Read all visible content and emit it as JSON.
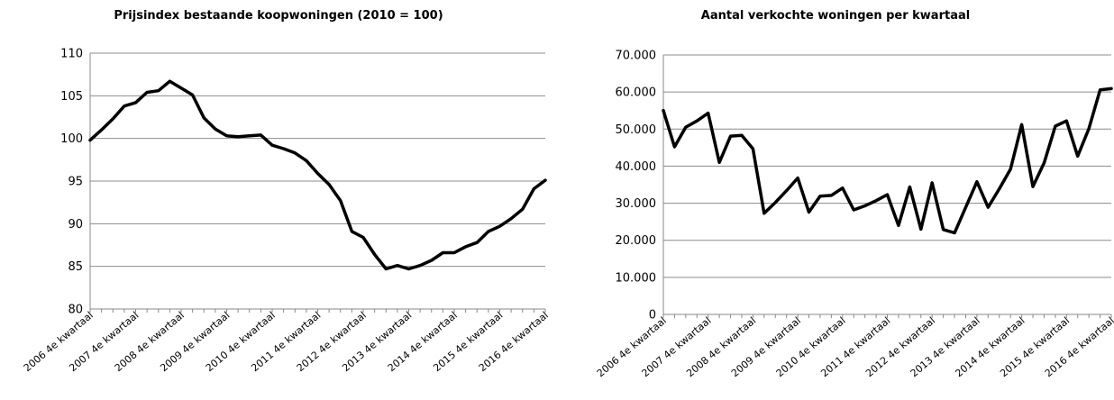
{
  "chart_data": [
    {
      "type": "line",
      "title": "Prijsindex bestaande koopwoningen (2010 = 100)",
      "xlabel": "",
      "ylabel": "",
      "ylim": [
        80,
        110
      ],
      "yticks": [
        "80",
        "85",
        "90",
        "95",
        "100",
        "105",
        "110"
      ],
      "ytick_values": [
        80,
        85,
        90,
        95,
        100,
        105,
        110
      ],
      "grid": true,
      "categories": [
        "2006 4e kwartaal",
        "2007 1e kwartaal",
        "2007 2e kwartaal",
        "2007 3e kwartaal",
        "2007 4e kwartaal",
        "2008 1e kwartaal",
        "2008 2e kwartaal",
        "2008 3e kwartaal",
        "2008 4e kwartaal",
        "2009 1e kwartaal",
        "2009 2e kwartaal",
        "2009 3e kwartaal",
        "2009 4e kwartaal",
        "2010 1e kwartaal",
        "2010 2e kwartaal",
        "2010 3e kwartaal",
        "2010 4e kwartaal",
        "2011 1e kwartaal",
        "2011 2e kwartaal",
        "2011 3e kwartaal",
        "2011 4e kwartaal",
        "2012 1e kwartaal",
        "2012 2e kwartaal",
        "2012 3e kwartaal",
        "2012 4e kwartaal",
        "2013 1e kwartaal",
        "2013 2e kwartaal",
        "2013 3e kwartaal",
        "2013 4e kwartaal",
        "2014 1e kwartaal",
        "2014 2e kwartaal",
        "2014 3e kwartaal",
        "2014 4e kwartaal",
        "2015 1e kwartaal",
        "2015 2e kwartaal",
        "2015 3e kwartaal",
        "2015 4e kwartaal",
        "2016 1e kwartaal",
        "2016 2e kwartaal",
        "2016 3e kwartaal",
        "2016 4e kwartaal"
      ],
      "shown_labels": [
        "2006 4e kwartaal",
        "2007 4e kwartaal",
        "2008 4e kwartaal",
        "2009 4e kwartaal",
        "2010 4e kwartaal",
        "2011 4e kwartaal",
        "2012 4e kwartaal",
        "2013 4e kwartaal",
        "2014 4e kwartaal",
        "2015 4e kwartaal",
        "2016 4e kwartaal"
      ],
      "values": [
        99.8,
        101.0,
        102.3,
        103.8,
        104.2,
        105.4,
        105.6,
        106.7,
        105.9,
        105.1,
        102.4,
        101.1,
        100.3,
        100.2,
        100.3,
        100.4,
        99.2,
        98.8,
        98.3,
        97.4,
        95.9,
        94.6,
        92.7,
        89.1,
        88.4,
        86.4,
        84.7,
        85.1,
        84.7,
        85.1,
        85.7,
        86.6,
        86.6,
        87.3,
        87.8,
        89.1,
        89.7,
        90.6,
        91.7,
        94.1,
        95.1
      ]
    },
    {
      "type": "line",
      "title": "Aantal verkochte woningen per kwartaal",
      "xlabel": "",
      "ylabel": "",
      "ylim": [
        0,
        70000
      ],
      "yticks": [
        "0",
        "10.000",
        "20.000",
        "30.000",
        "40.000",
        "50.000",
        "60.000",
        "70.000"
      ],
      "ytick_values": [
        0,
        10000,
        20000,
        30000,
        40000,
        50000,
        60000,
        70000
      ],
      "grid": true,
      "categories": [
        "2006 4e kwartaal",
        "2007 1e kwartaal",
        "2007 2e kwartaal",
        "2007 3e kwartaal",
        "2007 4e kwartaal",
        "2008 1e kwartaal",
        "2008 2e kwartaal",
        "2008 3e kwartaal",
        "2008 4e kwartaal",
        "2009 1e kwartaal",
        "2009 2e kwartaal",
        "2009 3e kwartaal",
        "2009 4e kwartaal",
        "2010 1e kwartaal",
        "2010 2e kwartaal",
        "2010 3e kwartaal",
        "2010 4e kwartaal",
        "2011 1e kwartaal",
        "2011 2e kwartaal",
        "2011 3e kwartaal",
        "2011 4e kwartaal",
        "2012 1e kwartaal",
        "2012 2e kwartaal",
        "2012 3e kwartaal",
        "2012 4e kwartaal",
        "2013 1e kwartaal",
        "2013 2e kwartaal",
        "2013 3e kwartaal",
        "2013 4e kwartaal",
        "2014 1e kwartaal",
        "2014 2e kwartaal",
        "2014 3e kwartaal",
        "2014 4e kwartaal",
        "2015 1e kwartaal",
        "2015 2e kwartaal",
        "2015 3e kwartaal",
        "2015 4e kwartaal",
        "2016 1e kwartaal",
        "2016 2e kwartaal",
        "2016 3e kwartaal",
        "2016 4e kwartaal"
      ],
      "shown_labels": [
        "2006 4e kwartaal",
        "2007 4e kwartaal",
        "2008 4e kwartaal",
        "2009 4e kwartaal",
        "2010 4e kwartaal",
        "2011 4e kwartaal",
        "2012 4e kwartaal",
        "2013 4e kwartaal",
        "2014 4e kwartaal",
        "2015 4e kwartaal",
        "2016 4e kwartaal"
      ],
      "values": [
        55000,
        45200,
        50500,
        52200,
        54300,
        41000,
        48100,
        48300,
        44700,
        27300,
        30200,
        33400,
        36800,
        27600,
        31900,
        32100,
        34100,
        28200,
        29300,
        30700,
        32300,
        24000,
        34400,
        23000,
        35500,
        22900,
        22000,
        28900,
        35800,
        28900,
        33900,
        39200,
        51200,
        34500,
        40900,
        50800,
        52200,
        42700,
        50100,
        60600,
        60900
      ]
    }
  ]
}
